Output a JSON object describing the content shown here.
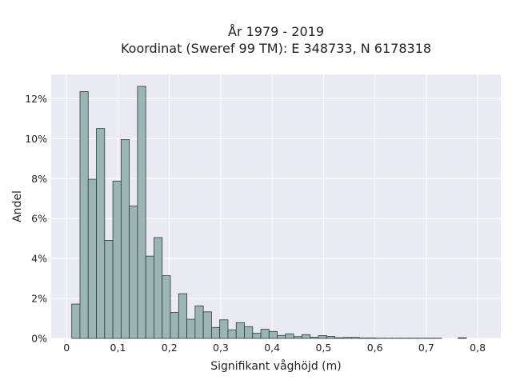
{
  "chart_data": {
    "type": "bar",
    "title_lines": [
      "År 1979 - 2019",
      "Koordinat (Sweref 99 TM): E 348733, N 6178318"
    ],
    "xlabel": "Signifikant våghöjd (m)",
    "ylabel": "Andel",
    "x_bin_width": 0.016,
    "x_bin_start": 0.01,
    "xlim": [
      -0.03,
      0.845
    ],
    "ylim": [
      0,
      0.1322
    ],
    "x_ticks": [
      0,
      0.1,
      0.2,
      0.3,
      0.4,
      0.5,
      0.6,
      0.7,
      0.8
    ],
    "x_tick_labels": [
      "0",
      "0,1",
      "0,2",
      "0,3",
      "0,4",
      "0,5",
      "0,6",
      "0,7",
      "0,8"
    ],
    "y_ticks": [
      0,
      0.02,
      0.04,
      0.06,
      0.08,
      0.1,
      0.12
    ],
    "y_tick_labels": [
      "0%",
      "2%",
      "4%",
      "6%",
      "8%",
      "10%",
      "12%"
    ],
    "values": [
      0.0172,
      0.1236,
      0.0797,
      0.1051,
      0.0491,
      0.0788,
      0.0996,
      0.0663,
      0.1262,
      0.0412,
      0.0505,
      0.0314,
      0.013,
      0.0224,
      0.0096,
      0.0163,
      0.0133,
      0.0055,
      0.0093,
      0.0043,
      0.0079,
      0.0059,
      0.0026,
      0.0046,
      0.0035,
      0.0015,
      0.0023,
      0.0009,
      0.0019,
      0.0006,
      0.0014,
      0.001,
      0.0003,
      0.0005,
      0.0005,
      0.0002,
      0.0002,
      0.0001,
      0.0001,
      0.0001,
      0.0001,
      0.0001,
      0.0001,
      0.0001,
      0.0001,
      0.0,
      0.0,
      0.0003
    ],
    "grid": true,
    "colors": {
      "bar_fill": "#9bb5b5",
      "bar_edge": "#2e3b3b",
      "plot_bg": "#eaeaf2",
      "grid": "#ffffff"
    }
  }
}
